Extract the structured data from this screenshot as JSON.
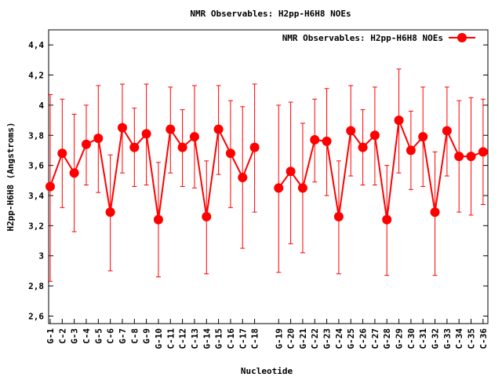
{
  "chart_data": {
    "type": "line",
    "title": "NMR Observables: H2pp-H6H8 NOEs",
    "xlabel": "Nucleotide",
    "ylabel": "H2pp-H6H8 (Angstroms)",
    "ylim": [
      2.55,
      4.5
    ],
    "yticks": [
      "2,6",
      "2,8",
      "3",
      "3,2",
      "3,4",
      "3,6",
      "3,8",
      "4",
      "4,2",
      "4,4"
    ],
    "ytick_values": [
      2.6,
      2.8,
      3.0,
      3.2,
      3.4,
      3.6,
      3.8,
      4.0,
      4.2,
      4.4
    ],
    "legend": {
      "label": "NMR Observables: H2pp-H6H8 NOEs",
      "placement": "top-right"
    },
    "color": "#ff0000",
    "series": [
      {
        "name": "NMR Observables: H2pp-H6H8 NOEs",
        "points": [
          {
            "label": "G-1",
            "x": 0,
            "y": 3.46,
            "lo": 2.83,
            "hi": 4.07
          },
          {
            "label": "C-2",
            "x": 1,
            "y": 3.68,
            "lo": 3.32,
            "hi": 4.04
          },
          {
            "label": "G-3",
            "x": 2,
            "y": 3.55,
            "lo": 3.16,
            "hi": 3.94
          },
          {
            "label": "C-4",
            "x": 3,
            "y": 3.74,
            "lo": 3.47,
            "hi": 4.0
          },
          {
            "label": "G-5",
            "x": 4,
            "y": 3.78,
            "lo": 3.42,
            "hi": 4.13
          },
          {
            "label": "C-6",
            "x": 5,
            "y": 3.29,
            "lo": 2.9,
            "hi": 3.67
          },
          {
            "label": "G-7",
            "x": 6,
            "y": 3.85,
            "lo": 3.55,
            "hi": 4.14
          },
          {
            "label": "C-8",
            "x": 7,
            "y": 3.72,
            "lo": 3.46,
            "hi": 3.98
          },
          {
            "label": "G-9",
            "x": 8,
            "y": 3.81,
            "lo": 3.47,
            "hi": 4.14
          },
          {
            "label": "G-10",
            "x": 9,
            "y": 3.24,
            "lo": 2.86,
            "hi": 3.62
          },
          {
            "label": "C-11",
            "x": 10,
            "y": 3.84,
            "lo": 3.55,
            "hi": 4.12
          },
          {
            "label": "C-12",
            "x": 11,
            "y": 3.72,
            "lo": 3.46,
            "hi": 3.97
          },
          {
            "label": "C-13",
            "x": 12,
            "y": 3.79,
            "lo": 3.45,
            "hi": 4.13
          },
          {
            "label": "G-14",
            "x": 13,
            "y": 3.26,
            "lo": 2.88,
            "hi": 3.63
          },
          {
            "label": "G-15",
            "x": 14,
            "y": 3.84,
            "lo": 3.54,
            "hi": 4.13
          },
          {
            "label": "C-16",
            "x": 15,
            "y": 3.68,
            "lo": 3.32,
            "hi": 4.03
          },
          {
            "label": "C-17",
            "x": 16,
            "y": 3.52,
            "lo": 3.05,
            "hi": 3.99
          },
          {
            "label": "C-18",
            "x": 17,
            "y": 3.72,
            "lo": 3.29,
            "hi": 4.14
          },
          {
            "label": "G-19",
            "x": 19,
            "y": 3.45,
            "lo": 2.89,
            "hi": 4.0
          },
          {
            "label": "C-20",
            "x": 20,
            "y": 3.56,
            "lo": 3.08,
            "hi": 4.02
          },
          {
            "label": "G-21",
            "x": 21,
            "y": 3.45,
            "lo": 3.02,
            "hi": 3.88
          },
          {
            "label": "C-22",
            "x": 22,
            "y": 3.77,
            "lo": 3.49,
            "hi": 4.04
          },
          {
            "label": "G-23",
            "x": 23,
            "y": 3.76,
            "lo": 3.4,
            "hi": 4.11
          },
          {
            "label": "C-24",
            "x": 24,
            "y": 3.26,
            "lo": 2.88,
            "hi": 3.63
          },
          {
            "label": "G-25",
            "x": 25,
            "y": 3.83,
            "lo": 3.53,
            "hi": 4.13
          },
          {
            "label": "C-26",
            "x": 26,
            "y": 3.72,
            "lo": 3.47,
            "hi": 3.97
          },
          {
            "label": "C-27",
            "x": 27,
            "y": 3.8,
            "lo": 3.47,
            "hi": 4.12
          },
          {
            "label": "G-28",
            "x": 28,
            "y": 3.24,
            "lo": 2.87,
            "hi": 3.6
          },
          {
            "label": "G-29",
            "x": 29,
            "y": 3.9,
            "lo": 3.55,
            "hi": 4.24
          },
          {
            "label": "C-30",
            "x": 30,
            "y": 3.7,
            "lo": 3.44,
            "hi": 3.96
          },
          {
            "label": "C-31",
            "x": 31,
            "y": 3.79,
            "lo": 3.46,
            "hi": 4.12
          },
          {
            "label": "G-32",
            "x": 32,
            "y": 3.29,
            "lo": 2.87,
            "hi": 3.69
          },
          {
            "label": "G-33",
            "x": 33,
            "y": 3.83,
            "lo": 3.53,
            "hi": 4.12
          },
          {
            "label": "C-34",
            "x": 34,
            "y": 3.66,
            "lo": 3.29,
            "hi": 4.03
          },
          {
            "label": "C-35",
            "x": 35,
            "y": 3.66,
            "lo": 3.27,
            "hi": 4.05
          },
          {
            "label": "C-36",
            "x": 36,
            "y": 3.69,
            "lo": 3.34,
            "hi": 4.04
          }
        ]
      }
    ],
    "xlim": [
      -0.13,
      36.4
    ]
  }
}
